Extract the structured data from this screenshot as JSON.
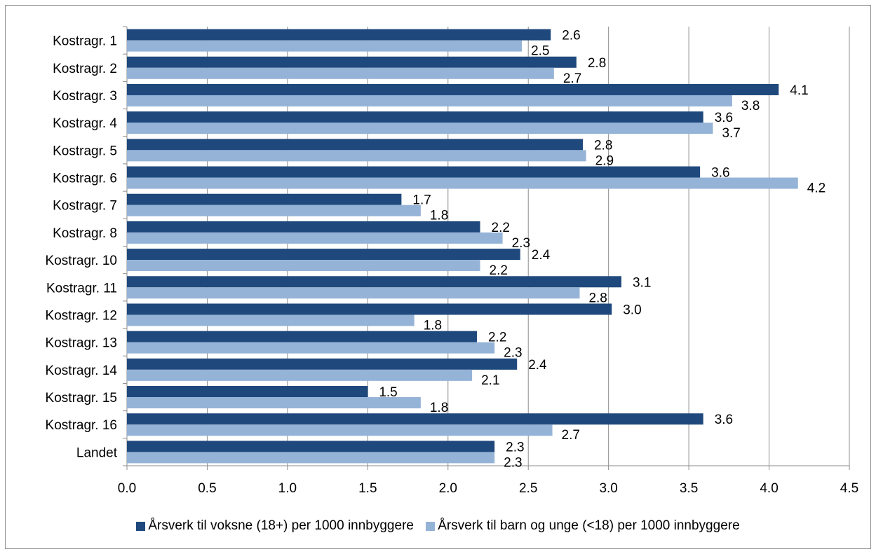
{
  "chart_data": {
    "type": "bar",
    "orientation": "horizontal",
    "categories": [
      "Kostragr. 1",
      "Kostragr. 2",
      "Kostragr. 3",
      "Kostragr. 4",
      "Kostragr. 5",
      "Kostragr. 6",
      "Kostragr. 7",
      "Kostragr. 8",
      "Kostragr. 10",
      "Kostragr. 11",
      "Kostragr. 12",
      "Kostragr. 13",
      "Kostragr. 14",
      "Kostragr. 15",
      "Kostragr. 16",
      "Landet"
    ],
    "series": [
      {
        "name": "Årsverk til voksne (18+) per 1000 innbyggere",
        "color": "#1f497d",
        "values": [
          2.64,
          2.8,
          4.06,
          3.59,
          2.84,
          3.57,
          1.71,
          2.2,
          2.45,
          3.08,
          3.02,
          2.18,
          2.43,
          1.5,
          3.59,
          2.29
        ],
        "labels": [
          "2.6",
          "2.8",
          "4.1",
          "3.6",
          "2.8",
          "3.6",
          "1.7",
          "2.2",
          "2.4",
          "3.1",
          "3.0",
          "2.2",
          "2.4",
          "1.5",
          "3.6",
          "2.3"
        ]
      },
      {
        "name": "Årsverk til barn og unge (<18) per 1000 innbyggere",
        "color": "#95b3d7",
        "values": [
          2.46,
          2.66,
          3.77,
          3.65,
          2.86,
          4.18,
          1.83,
          2.34,
          2.2,
          2.82,
          1.79,
          2.29,
          2.15,
          1.83,
          2.65,
          2.29
        ],
        "labels": [
          "2.5",
          "2.7",
          "3.8",
          "3.7",
          "2.9",
          "4.2",
          "1.8",
          "2.3",
          "2.2",
          "2.8",
          "1.8",
          "2.3",
          "2.1",
          "1.8",
          "2.7",
          "2.3"
        ]
      }
    ],
    "xlim": [
      0,
      4.5
    ],
    "xticks": [
      "0.0",
      "0.5",
      "1.0",
      "1.5",
      "2.0",
      "2.5",
      "3.0",
      "3.5",
      "4.0",
      "4.5"
    ],
    "grid": "vertical",
    "legend_position": "bottom",
    "title": "",
    "xlabel": "",
    "ylabel": ""
  }
}
